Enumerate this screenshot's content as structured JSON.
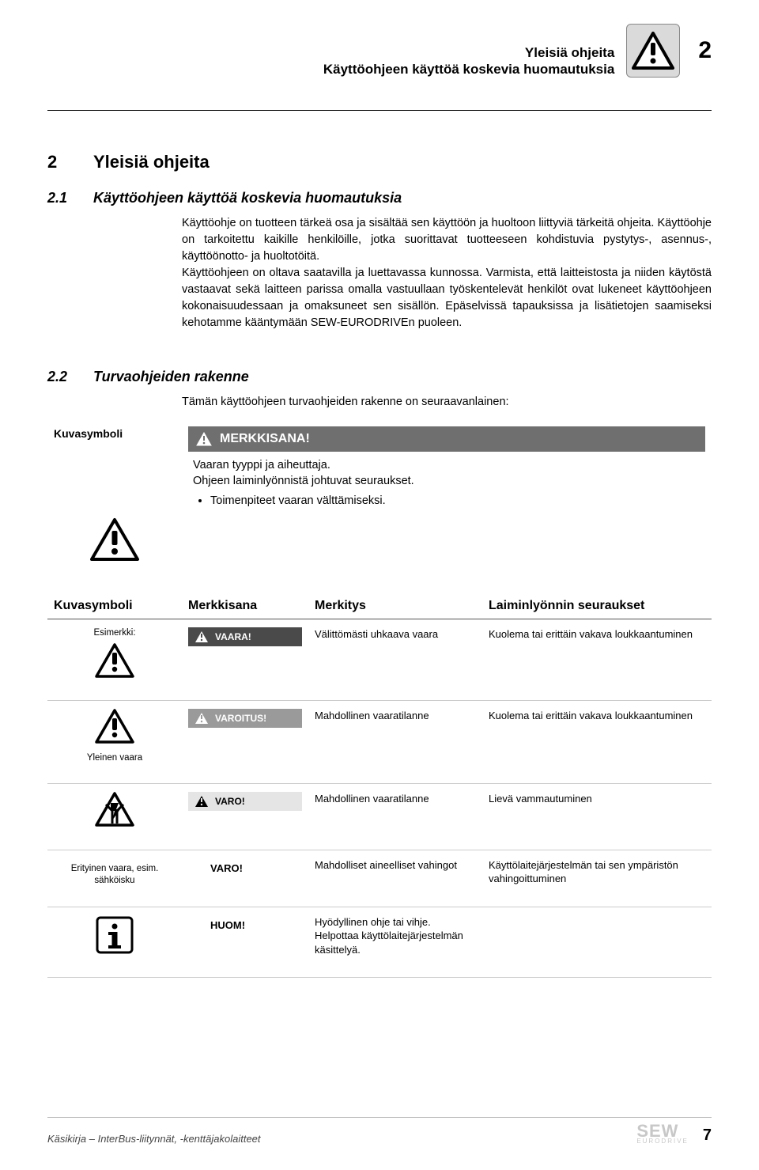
{
  "header": {
    "line1": "Yleisiä ohjeita",
    "line2": "Käyttöohjeen käyttöä koskevia huomautuksia",
    "chapter_number": "2"
  },
  "section2": {
    "num": "2",
    "title": "Yleisiä ohjeita"
  },
  "section21": {
    "num": "2.1",
    "title": "Käyttöohjeen käyttöä koskevia huomautuksia",
    "para": "Käyttöohje on tuotteen tärkeä osa ja sisältää sen käyttöön ja huoltoon liittyviä tärkeitä ohjeita. Käyttöohje on tarkoitettu kaikille henkilöille, jotka suorittavat tuotteeseen kohdistuvia pystytys-, asennus-, käyttöönotto- ja huoltotöitä.\nKäyttöohjeen on oltava saatavilla ja luettavassa kunnossa. Varmista, että laitteistosta ja niiden käytöstä vastaavat sekä laitteen parissa omalla vastuullaan työskentelevät henkilöt ovat lukeneet käyttöohjeen kokonaisuudessaan ja omaksuneet sen sisällön. Epäselvissä tapauksissa ja lisätietojen saamiseksi kehotamme kääntymään SEW-EURODRIVEn puoleen."
  },
  "section22": {
    "num": "2.2",
    "title": "Turvaohjeiden rakenne",
    "intro": "Tämän käyttöohjeen turvaohjeiden rakenne on seuraavanlainen:",
    "kuvasymboli_label": "Kuvasymboli",
    "merkkisana_label": "MERKKISANA!",
    "desc1": "Vaaran tyyppi ja aiheuttaja.",
    "desc2": "Ohjeen laiminlyönnistä johtuvat seuraukset.",
    "bullet": "Toimenpiteet vaaran välttämiseksi."
  },
  "hazard": {
    "headers": [
      "Kuvasymboli",
      "Merkkisana",
      "Merkitys",
      "Laiminlyönnin seuraukset"
    ],
    "col1_sub": "Esimerkki:",
    "rows": [
      {
        "word": "VAARA!",
        "meaning": "Välittömästi uhkaava vaara",
        "conseq": "Kuolema tai erittäin vakava loukkaantuminen",
        "bg": "#4a4a4a",
        "fg": "#ffffff"
      },
      {
        "word": "VAROITUS!",
        "meaning": "Mahdollinen vaaratilanne",
        "conseq": "Kuolema tai erittäin vakava loukkaantuminen",
        "bg": "#9a9a9a",
        "fg": "#ffffff",
        "caption": "Yleinen vaara"
      },
      {
        "word": "VARO!",
        "meaning": "Mahdollinen vaaratilanne",
        "conseq": "Lievä vammautuminen",
        "bg": "#e5e5e5",
        "fg": "#000000"
      },
      {
        "word": "VARO!",
        "meaning": "Mahdolliset aineelliset vahingot",
        "conseq": "Käyttölaitejärjestelmän tai sen ympäristön vahingoittuminen",
        "bg": "transparent",
        "fg": "#000000",
        "caption": "Erityinen vaara, esim. sähköisku",
        "noicon": true
      },
      {
        "word": "HUOM!",
        "meaning": "Hyödyllinen ohje tai vihje.\nHelpottaa käyttölaitejärjestelmän käsittelyä.",
        "conseq": "",
        "bg": "transparent",
        "fg": "#000000",
        "noicon": true
      }
    ]
  },
  "footer": {
    "left": "Käsikirja – InterBus-liitynnät, -kenttäjakolaitteet",
    "page": "7",
    "logo": "SEW",
    "logo_sub": "EURODRIVE"
  }
}
